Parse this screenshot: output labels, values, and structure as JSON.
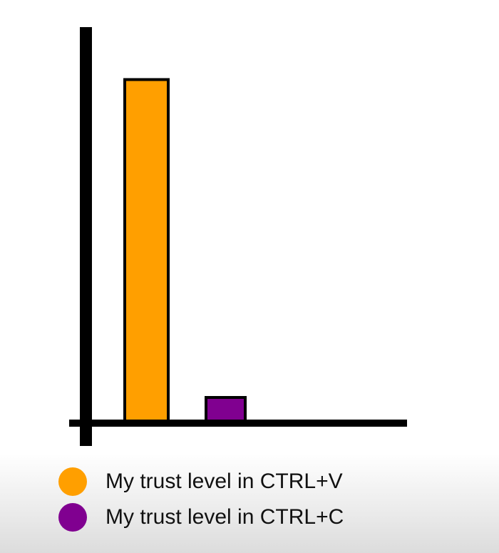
{
  "chart_data": {
    "type": "bar",
    "title": "",
    "xlabel": "",
    "ylabel": "",
    "categories": [
      "My trust level in CTRL+V",
      "My trust level in CTRL+C"
    ],
    "values": [
      87,
      6
    ],
    "colors": [
      "#ff9f00",
      "#800090"
    ],
    "ylim": [
      0,
      100
    ],
    "grid": false,
    "legend": {
      "position": "bottom-left",
      "entries": [
        "My trust level in CTRL+V",
        "My trust level in CTRL+C"
      ]
    }
  }
}
